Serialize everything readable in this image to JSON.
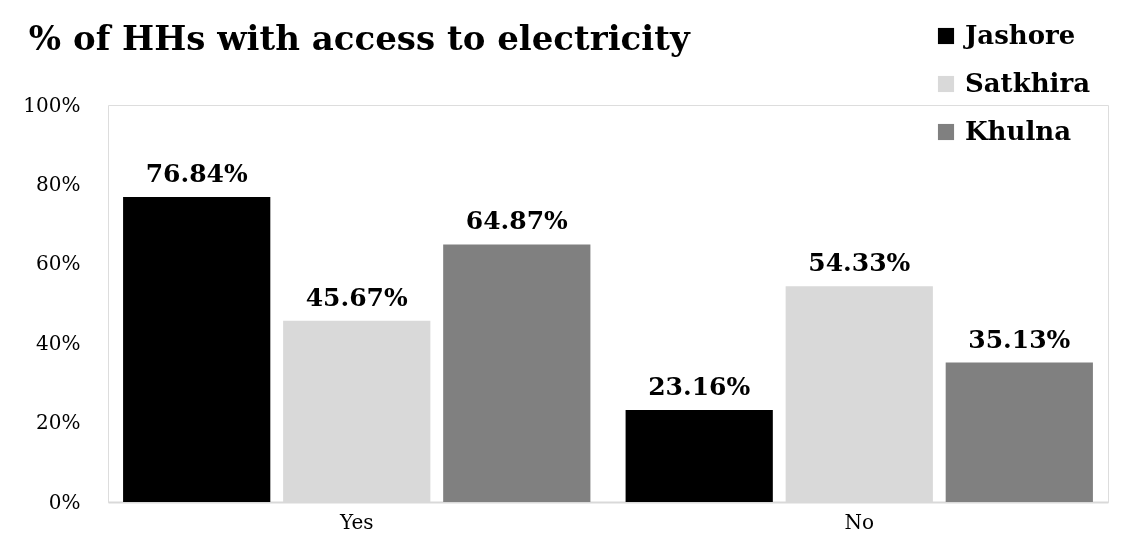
{
  "chart_data": {
    "type": "bar",
    "title": "% of HHs with access to electricity",
    "categories": [
      "Yes",
      "No"
    ],
    "series": [
      {
        "name": "Jashore",
        "color": "#000000",
        "values": [
          76.84,
          23.16
        ],
        "value_labels": [
          "76.84%",
          "23.16%"
        ]
      },
      {
        "name": "Satkhira",
        "color": "#d9d9d9",
        "values": [
          45.67,
          54.33
        ],
        "value_labels": [
          "45.67%",
          "54.33%"
        ]
      },
      {
        "name": "Khulna",
        "color": "#808080",
        "values": [
          64.87,
          35.13
        ],
        "value_labels": [
          "64.87%",
          "35.13%"
        ]
      }
    ],
    "ylim": [
      0,
      100
    ],
    "yticks": [
      {
        "value": 0,
        "label": "0%"
      },
      {
        "value": 20,
        "label": "20%"
      },
      {
        "value": 40,
        "label": "40%"
      },
      {
        "value": 60,
        "label": "60%"
      },
      {
        "value": 80,
        "label": "80%"
      },
      {
        "value": 100,
        "label": "100%"
      }
    ],
    "grid": false,
    "legend": "top right"
  }
}
